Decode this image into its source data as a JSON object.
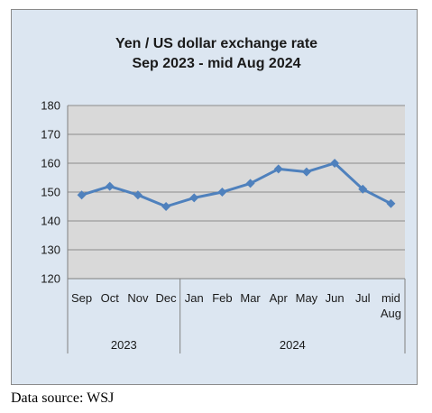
{
  "chart_data": {
    "type": "line",
    "title": [
      "Yen / US dollar exchange rate",
      "Sep 2023 - mid Aug 2024"
    ],
    "categories": [
      "Sep",
      "Oct",
      "Nov",
      "Dec",
      "Jan",
      "Feb",
      "Mar",
      "Apr",
      "May",
      "Jun",
      "Jul",
      "mid Aug"
    ],
    "category_groups": [
      {
        "label": "2023",
        "span": 4
      },
      {
        "label": "2024",
        "span": 8
      }
    ],
    "series": [
      {
        "values": [
          149,
          152,
          149,
          145,
          148,
          150,
          153,
          158,
          157,
          160,
          151,
          146
        ],
        "color": "#4f81bd"
      }
    ],
    "xlabel": "",
    "ylabel": "",
    "ylim": [
      120,
      180
    ],
    "yticks": [
      120,
      130,
      140,
      150,
      160,
      170,
      180
    ],
    "grid": true,
    "plot_background": "#d9d9d9",
    "frame_background": "#dce6f1"
  },
  "source_note": "Data source: WSJ"
}
